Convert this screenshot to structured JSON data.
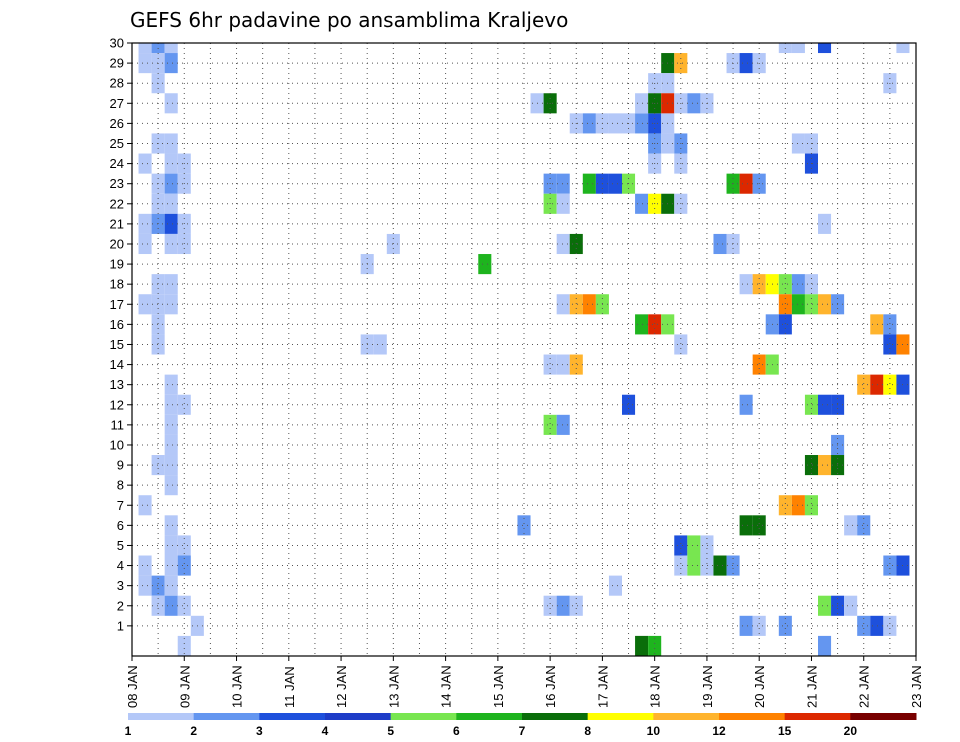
{
  "chart_data": {
    "type": "heatmap",
    "title": "GEFS 6hr padavine po ansamblima Kraljevo",
    "xlabel": "",
    "ylabel": "",
    "x_tick_labels": [
      "08 JAN",
      "09 JAN",
      "10 JAN",
      "11 JAN",
      "12 JAN",
      "13 JAN",
      "14 JAN",
      "15 JAN",
      "16 JAN",
      "17 JAN",
      "18 JAN",
      "19 JAN",
      "20 JAN",
      "21 JAN",
      "22 JAN",
      "23 JAN"
    ],
    "y_tick_labels": [
      "1",
      "2",
      "3",
      "4",
      "5",
      "6",
      "7",
      "8",
      "9",
      "10",
      "11",
      "12",
      "13",
      "14",
      "15",
      "16",
      "17",
      "18",
      "19",
      "20",
      "21",
      "22",
      "23",
      "24",
      "25",
      "26",
      "27",
      "28",
      "29",
      "30"
    ],
    "xlim_days": [
      8,
      23
    ],
    "ylim_members": [
      0,
      30
    ],
    "time_step_hours": 6,
    "grid": true,
    "legend": {
      "placement": "bottom",
      "levels": [
        "1",
        "2",
        "3",
        "4",
        "5",
        "6",
        "7",
        "8",
        "10",
        "12",
        "15",
        "20"
      ],
      "colors": [
        "#b4c8f8",
        "#6496f0",
        "#1e50dc",
        "#1e3cc8",
        "#78e650",
        "#1eb41e",
        "#0a6e0a",
        "#ffff00",
        "#ffb42d",
        "#ff8200",
        "#dc2800",
        "#780000"
      ]
    },
    "cells": [
      {
        "member": 30,
        "day": 8.25,
        "level": "1"
      },
      {
        "member": 30,
        "day": 8.5,
        "level": "2"
      },
      {
        "member": 30,
        "day": 8.75,
        "level": "1"
      },
      {
        "member": 29,
        "day": 8.25,
        "level": "1"
      },
      {
        "member": 29,
        "day": 8.5,
        "level": "1"
      },
      {
        "member": 29,
        "day": 8.75,
        "level": "2"
      },
      {
        "member": 28,
        "day": 8.5,
        "level": "1"
      },
      {
        "member": 27,
        "day": 8.75,
        "level": "1"
      },
      {
        "member": 25,
        "day": 8.5,
        "level": "1"
      },
      {
        "member": 25,
        "day": 8.75,
        "level": "1"
      },
      {
        "member": 24,
        "day": 8.25,
        "level": "1"
      },
      {
        "member": 24,
        "day": 8.75,
        "level": "1"
      },
      {
        "member": 24,
        "day": 9.0,
        "level": "1"
      },
      {
        "member": 23,
        "day": 8.5,
        "level": "1"
      },
      {
        "member": 23,
        "day": 8.75,
        "level": "2"
      },
      {
        "member": 23,
        "day": 9.0,
        "level": "1"
      },
      {
        "member": 22,
        "day": 8.5,
        "level": "1"
      },
      {
        "member": 22,
        "day": 8.75,
        "level": "1"
      },
      {
        "member": 21,
        "day": 8.25,
        "level": "1"
      },
      {
        "member": 21,
        "day": 8.5,
        "level": "2"
      },
      {
        "member": 21,
        "day": 8.75,
        "level": "3"
      },
      {
        "member": 21,
        "day": 9.0,
        "level": "1"
      },
      {
        "member": 20,
        "day": 8.25,
        "level": "1"
      },
      {
        "member": 20,
        "day": 8.75,
        "level": "1"
      },
      {
        "member": 20,
        "day": 9.0,
        "level": "1"
      },
      {
        "member": 18,
        "day": 8.5,
        "level": "1"
      },
      {
        "member": 18,
        "day": 8.75,
        "level": "1"
      },
      {
        "member": 17,
        "day": 8.25,
        "level": "1"
      },
      {
        "member": 17,
        "day": 8.5,
        "level": "1"
      },
      {
        "member": 17,
        "day": 8.75,
        "level": "1"
      },
      {
        "member": 16,
        "day": 8.5,
        "level": "1"
      },
      {
        "member": 15,
        "day": 8.5,
        "level": "1"
      },
      {
        "member": 13,
        "day": 8.75,
        "level": "1"
      },
      {
        "member": 12,
        "day": 8.75,
        "level": "1"
      },
      {
        "member": 12,
        "day": 9.0,
        "level": "1"
      },
      {
        "member": 11,
        "day": 8.75,
        "level": "1"
      },
      {
        "member": 10,
        "day": 8.75,
        "level": "1"
      },
      {
        "member": 9,
        "day": 8.5,
        "level": "1"
      },
      {
        "member": 9,
        "day": 8.75,
        "level": "1"
      },
      {
        "member": 8,
        "day": 8.75,
        "level": "1"
      },
      {
        "member": 7,
        "day": 8.25,
        "level": "1"
      },
      {
        "member": 6,
        "day": 8.75,
        "level": "1"
      },
      {
        "member": 5,
        "day": 8.75,
        "level": "1"
      },
      {
        "member": 5,
        "day": 9.0,
        "level": "1"
      },
      {
        "member": 4,
        "day": 8.25,
        "level": "1"
      },
      {
        "member": 4,
        "day": 8.75,
        "level": "1"
      },
      {
        "member": 4,
        "day": 9.0,
        "level": "2"
      },
      {
        "member": 3,
        "day": 8.25,
        "level": "1"
      },
      {
        "member": 3,
        "day": 8.5,
        "level": "2"
      },
      {
        "member": 3,
        "day": 8.75,
        "level": "1"
      },
      {
        "member": 2,
        "day": 8.5,
        "level": "1"
      },
      {
        "member": 2,
        "day": 8.75,
        "level": "2"
      },
      {
        "member": 2,
        "day": 9.0,
        "level": "1"
      },
      {
        "member": 1,
        "day": 9.25,
        "level": "1"
      },
      {
        "member": 0,
        "day": 9.0,
        "level": "1"
      },
      {
        "member": 20,
        "day": 13.0,
        "level": "1"
      },
      {
        "member": 19,
        "day": 12.5,
        "level": "1"
      },
      {
        "member": 15,
        "day": 12.5,
        "level": "1"
      },
      {
        "member": 15,
        "day": 12.75,
        "level": "1"
      },
      {
        "member": 19,
        "day": 14.75,
        "level": "6"
      },
      {
        "member": 6,
        "day": 15.5,
        "level": "2"
      },
      {
        "member": 27,
        "day": 15.75,
        "level": "1"
      },
      {
        "member": 27,
        "day": 16.0,
        "level": "7"
      },
      {
        "member": 26,
        "day": 16.5,
        "level": "1"
      },
      {
        "member": 26,
        "day": 16.75,
        "level": "2"
      },
      {
        "member": 26,
        "day": 17.0,
        "level": "1"
      },
      {
        "member": 26,
        "day": 17.25,
        "level": "1"
      },
      {
        "member": 26,
        "day": 17.5,
        "level": "1"
      },
      {
        "member": 26,
        "day": 17.75,
        "level": "2"
      },
      {
        "member": 26,
        "day": 18.0,
        "level": "3"
      },
      {
        "member": 26,
        "day": 18.25,
        "level": "1"
      },
      {
        "member": 23,
        "day": 16.0,
        "level": "2"
      },
      {
        "member": 23,
        "day": 16.25,
        "level": "2"
      },
      {
        "member": 23,
        "day": 16.75,
        "level": "6"
      },
      {
        "member": 23,
        "day": 17.0,
        "level": "3"
      },
      {
        "member": 23,
        "day": 17.25,
        "level": "3"
      },
      {
        "member": 23,
        "day": 17.5,
        "level": "5"
      },
      {
        "member": 22,
        "day": 16.0,
        "level": "5"
      },
      {
        "member": 22,
        "day": 16.25,
        "level": "1"
      },
      {
        "member": 20,
        "day": 16.25,
        "level": "1"
      },
      {
        "member": 20,
        "day": 16.5,
        "level": "7"
      },
      {
        "member": 17,
        "day": 16.25,
        "level": "1"
      },
      {
        "member": 17,
        "day": 16.5,
        "level": "10"
      },
      {
        "member": 17,
        "day": 16.75,
        "level": "12"
      },
      {
        "member": 17,
        "day": 17.0,
        "level": "5"
      },
      {
        "member": 14,
        "day": 16.0,
        "level": "1"
      },
      {
        "member": 14,
        "day": 16.25,
        "level": "1"
      },
      {
        "member": 14,
        "day": 16.5,
        "level": "10"
      },
      {
        "member": 11,
        "day": 16.0,
        "level": "5"
      },
      {
        "member": 11,
        "day": 16.25,
        "level": "2"
      },
      {
        "member": 2,
        "day": 16.0,
        "level": "1"
      },
      {
        "member": 2,
        "day": 16.25,
        "level": "2"
      },
      {
        "member": 2,
        "day": 16.5,
        "level": "1"
      },
      {
        "member": 3,
        "day": 17.25,
        "level": "1"
      },
      {
        "member": 12,
        "day": 17.5,
        "level": "3"
      },
      {
        "member": 0,
        "day": 17.75,
        "level": "7"
      },
      {
        "member": 0,
        "day": 18.0,
        "level": "6"
      },
      {
        "member": 29,
        "day": 18.25,
        "level": "7"
      },
      {
        "member": 29,
        "day": 18.5,
        "level": "10"
      },
      {
        "member": 28,
        "day": 18.0,
        "level": "1"
      },
      {
        "member": 28,
        "day": 18.25,
        "level": "1"
      },
      {
        "member": 27,
        "day": 17.75,
        "level": "1"
      },
      {
        "member": 27,
        "day": 18.0,
        "level": "7"
      },
      {
        "member": 27,
        "day": 18.25,
        "level": "15"
      },
      {
        "member": 27,
        "day": 18.5,
        "level": "1"
      },
      {
        "member": 27,
        "day": 18.75,
        "level": "2"
      },
      {
        "member": 27,
        "day": 19.0,
        "level": "1"
      },
      {
        "member": 25,
        "day": 18.0,
        "level": "2"
      },
      {
        "member": 25,
        "day": 18.25,
        "level": "1"
      },
      {
        "member": 25,
        "day": 18.5,
        "level": "2"
      },
      {
        "member": 24,
        "day": 18.0,
        "level": "1"
      },
      {
        "member": 24,
        "day": 18.5,
        "level": "1"
      },
      {
        "member": 22,
        "day": 17.75,
        "level": "2"
      },
      {
        "member": 22,
        "day": 18.0,
        "level": "8"
      },
      {
        "member": 22,
        "day": 18.25,
        "level": "7"
      },
      {
        "member": 22,
        "day": 18.5,
        "level": "1"
      },
      {
        "member": 16,
        "day": 17.75,
        "level": "6"
      },
      {
        "member": 16,
        "day": 18.0,
        "level": "15"
      },
      {
        "member": 16,
        "day": 18.25,
        "level": "5"
      },
      {
        "member": 15,
        "day": 18.5,
        "level": "1"
      },
      {
        "member": 5,
        "day": 18.5,
        "level": "3"
      },
      {
        "member": 5,
        "day": 18.75,
        "level": "5"
      },
      {
        "member": 5,
        "day": 19.0,
        "level": "1"
      },
      {
        "member": 4,
        "day": 18.5,
        "level": "1"
      },
      {
        "member": 4,
        "day": 18.75,
        "level": "5"
      },
      {
        "member": 4,
        "day": 19.0,
        "level": "1"
      },
      {
        "member": 4,
        "day": 19.25,
        "level": "7"
      },
      {
        "member": 4,
        "day": 19.5,
        "level": "2"
      },
      {
        "member": 20,
        "day": 19.25,
        "level": "2"
      },
      {
        "member": 20,
        "day": 19.5,
        "level": "1"
      },
      {
        "member": 29,
        "day": 19.5,
        "level": "1"
      },
      {
        "member": 29,
        "day": 19.75,
        "level": "3"
      },
      {
        "member": 29,
        "day": 20.0,
        "level": "1"
      },
      {
        "member": 23,
        "day": 19.5,
        "level": "6"
      },
      {
        "member": 23,
        "day": 19.75,
        "level": "15"
      },
      {
        "member": 23,
        "day": 20.0,
        "level": "2"
      },
      {
        "member": 18,
        "day": 19.75,
        "level": "1"
      },
      {
        "member": 18,
        "day": 20.0,
        "level": "10"
      },
      {
        "member": 18,
        "day": 20.25,
        "level": "8"
      },
      {
        "member": 18,
        "day": 20.5,
        "level": "5"
      },
      {
        "member": 18,
        "day": 20.75,
        "level": "2"
      },
      {
        "member": 18,
        "day": 21.0,
        "level": "1"
      },
      {
        "member": 17,
        "day": 20.5,
        "level": "12"
      },
      {
        "member": 17,
        "day": 20.75,
        "level": "6"
      },
      {
        "member": 17,
        "day": 21.0,
        "level": "5"
      },
      {
        "member": 17,
        "day": 21.25,
        "level": "10"
      },
      {
        "member": 17,
        "day": 21.5,
        "level": "2"
      },
      {
        "member": 16,
        "day": 20.25,
        "level": "2"
      },
      {
        "member": 16,
        "day": 20.5,
        "level": "3"
      },
      {
        "member": 14,
        "day": 20.0,
        "level": "12"
      },
      {
        "member": 14,
        "day": 20.25,
        "level": "5"
      },
      {
        "member": 12,
        "day": 19.75,
        "level": "2"
      },
      {
        "member": 7,
        "day": 20.5,
        "level": "10"
      },
      {
        "member": 7,
        "day": 20.75,
        "level": "12"
      },
      {
        "member": 7,
        "day": 21.0,
        "level": "5"
      },
      {
        "member": 6,
        "day": 19.75,
        "level": "7"
      },
      {
        "member": 6,
        "day": 20.0,
        "level": "7"
      },
      {
        "member": 1,
        "day": 19.75,
        "level": "2"
      },
      {
        "member": 1,
        "day": 20.0,
        "level": "1"
      },
      {
        "member": 1,
        "day": 20.5,
        "level": "2"
      },
      {
        "member": 30,
        "day": 20.5,
        "level": "1"
      },
      {
        "member": 30,
        "day": 20.75,
        "level": "1"
      },
      {
        "member": 30,
        "day": 21.25,
        "level": "3"
      },
      {
        "member": 25,
        "day": 20.75,
        "level": "1"
      },
      {
        "member": 25,
        "day": 21.0,
        "level": "1"
      },
      {
        "member": 24,
        "day": 21.0,
        "level": "3"
      },
      {
        "member": 21,
        "day": 21.25,
        "level": "1"
      },
      {
        "member": 12,
        "day": 21.0,
        "level": "5"
      },
      {
        "member": 12,
        "day": 21.25,
        "level": "3"
      },
      {
        "member": 12,
        "day": 21.5,
        "level": "3"
      },
      {
        "member": 10,
        "day": 21.5,
        "level": "2"
      },
      {
        "member": 9,
        "day": 21.0,
        "level": "7"
      },
      {
        "member": 9,
        "day": 21.25,
        "level": "10"
      },
      {
        "member": 9,
        "day": 21.5,
        "level": "7"
      },
      {
        "member": 2,
        "day": 21.25,
        "level": "5"
      },
      {
        "member": 2,
        "day": 21.5,
        "level": "3"
      },
      {
        "member": 2,
        "day": 21.75,
        "level": "1"
      },
      {
        "member": 0,
        "day": 21.25,
        "level": "2"
      },
      {
        "member": 6,
        "day": 21.75,
        "level": "1"
      },
      {
        "member": 6,
        "day": 22.0,
        "level": "2"
      },
      {
        "member": 1,
        "day": 22.0,
        "level": "2"
      },
      {
        "member": 1,
        "day": 22.25,
        "level": "3"
      },
      {
        "member": 1,
        "day": 22.5,
        "level": "1"
      },
      {
        "member": 4,
        "day": 22.5,
        "level": "2"
      },
      {
        "member": 4,
        "day": 22.75,
        "level": "3"
      },
      {
        "member": 13,
        "day": 22.0,
        "level": "10"
      },
      {
        "member": 13,
        "day": 22.25,
        "level": "15"
      },
      {
        "member": 13,
        "day": 22.5,
        "level": "8"
      },
      {
        "member": 13,
        "day": 22.75,
        "level": "3"
      },
      {
        "member": 16,
        "day": 22.25,
        "level": "10"
      },
      {
        "member": 16,
        "day": 22.5,
        "level": "2"
      },
      {
        "member": 15,
        "day": 22.5,
        "level": "3"
      },
      {
        "member": 15,
        "day": 22.75,
        "level": "12"
      },
      {
        "member": 28,
        "day": 22.5,
        "level": "1"
      },
      {
        "member": 30,
        "day": 22.75,
        "level": "1"
      }
    ]
  }
}
